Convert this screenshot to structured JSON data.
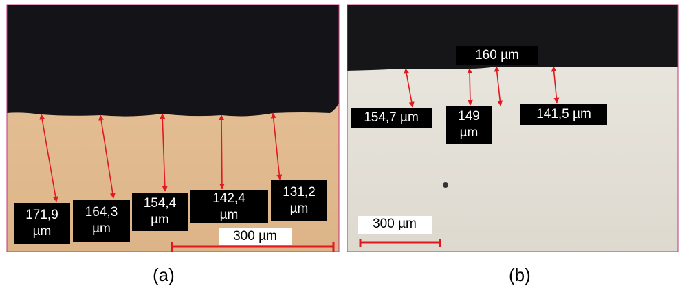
{
  "panels": [
    {
      "measurements": [
        "171,9 µm",
        "164,3 µm",
        "154,4 µm",
        "142,4 µm",
        "131,2 µm"
      ],
      "scale_bar": "300 µm",
      "caption": "(a)"
    },
    {
      "measurements": [
        "160 µm",
        "154,7 µm",
        "149 µm",
        "141,5 µm"
      ],
      "scale_bar": "300 µm",
      "caption": "(b)"
    }
  ]
}
